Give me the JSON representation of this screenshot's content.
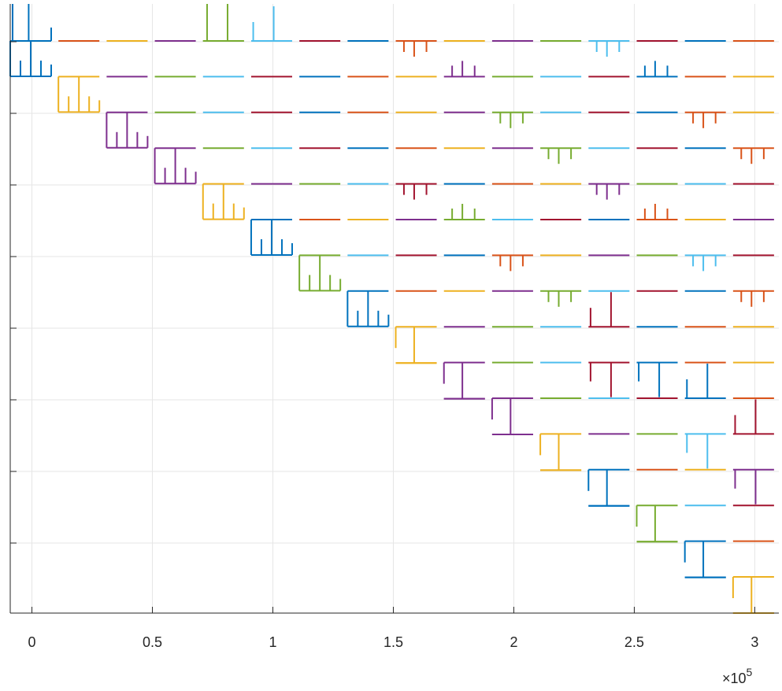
{
  "chart_data": {
    "type": "line",
    "title": "",
    "xlabel": "",
    "ylabel": "",
    "xlim": [
      -9000,
      310000
    ],
    "xticks": [
      0,
      50000,
      100000,
      150000,
      200000,
      250000,
      300000
    ],
    "xtick_labels": [
      "0",
      "0.5",
      "1",
      "1.5",
      "2",
      "2.5",
      "3"
    ],
    "x_exponent": {
      "base": "×10",
      "power": "5"
    },
    "yticks_count": 8,
    "grid": true,
    "legend": "none",
    "description": "Block matrix of small impulse-response traces; each block is one series segment",
    "colors": [
      "#0072BD",
      "#D95319",
      "#EDB120",
      "#7E2F8E",
      "#77AC30",
      "#4DBEEE",
      "#A2142F"
    ],
    "block": {
      "x_start_first": -9000,
      "x_step": 20000,
      "width": 17000,
      "rows": 17,
      "cols": 16
    },
    "diag_impulse": {
      "small_rows": [
        0,
        1,
        2,
        3,
        4,
        5,
        6,
        7,
        8
      ],
      "big_rows": [
        9,
        10,
        11,
        12,
        13,
        14,
        15,
        16
      ]
    },
    "offdiag_impulses": [
      {
        "row": 0,
        "col": 4,
        "dir": "up",
        "big": true
      },
      {
        "row": 1,
        "col": 5,
        "dir": "up",
        "big": true
      },
      {
        "row": 1,
        "col": 8,
        "dir": "down",
        "big": false
      },
      {
        "row": 1,
        "col": 12,
        "dir": "down",
        "big": false
      },
      {
        "row": 2,
        "col": 9,
        "dir": "up",
        "big": false
      },
      {
        "row": 2,
        "col": 13,
        "dir": "up",
        "big": false
      },
      {
        "row": 3,
        "col": 10,
        "dir": "down",
        "big": false
      },
      {
        "row": 3,
        "col": 14,
        "dir": "down",
        "big": false
      },
      {
        "row": 4,
        "col": 11,
        "dir": "down",
        "big": false
      },
      {
        "row": 4,
        "col": 15,
        "dir": "down",
        "big": false
      },
      {
        "row": 5,
        "col": 8,
        "dir": "down",
        "big": false
      },
      {
        "row": 5,
        "col": 12,
        "dir": "down",
        "big": false
      },
      {
        "row": 6,
        "col": 9,
        "dir": "up",
        "big": false
      },
      {
        "row": 6,
        "col": 13,
        "dir": "up",
        "big": false
      },
      {
        "row": 7,
        "col": 10,
        "dir": "down",
        "big": false
      },
      {
        "row": 7,
        "col": 14,
        "dir": "down",
        "big": false
      },
      {
        "row": 8,
        "col": 11,
        "dir": "down",
        "big": false
      },
      {
        "row": 8,
        "col": 15,
        "dir": "down",
        "big": false
      },
      {
        "row": 9,
        "col": 12,
        "dir": "up",
        "big": true
      },
      {
        "row": 10,
        "col": 12,
        "dir": "down",
        "big": true
      },
      {
        "row": 10,
        "col": 13,
        "dir": "down",
        "big": true
      },
      {
        "row": 11,
        "col": 14,
        "dir": "up",
        "big": true
      },
      {
        "row": 12,
        "col": 14,
        "dir": "down",
        "big": true
      },
      {
        "row": 12,
        "col": 15,
        "dir": "up",
        "big": true
      },
      {
        "row": 13,
        "col": 15,
        "dir": "down",
        "big": true
      }
    ]
  }
}
